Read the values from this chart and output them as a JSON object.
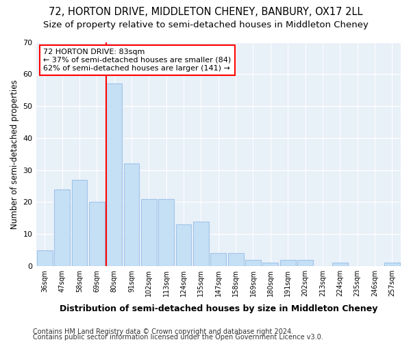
{
  "title1": "72, HORTON DRIVE, MIDDLETON CHENEY, BANBURY, OX17 2LL",
  "title2": "Size of property relative to semi-detached houses in Middleton Cheney",
  "xlabel": "Distribution of semi-detached houses by size in Middleton Cheney",
  "ylabel": "Number of semi-detached properties",
  "categories": [
    "36sqm",
    "47sqm",
    "58sqm",
    "69sqm",
    "80sqm",
    "91sqm",
    "102sqm",
    "113sqm",
    "124sqm",
    "135sqm",
    "147sqm",
    "158sqm",
    "169sqm",
    "180sqm",
    "191sqm",
    "202sqm",
    "213sqm",
    "224sqm",
    "235sqm",
    "246sqm",
    "257sqm"
  ],
  "values": [
    5,
    24,
    27,
    20,
    57,
    32,
    21,
    21,
    13,
    14,
    4,
    4,
    2,
    1,
    2,
    2,
    0,
    1,
    0,
    0,
    1
  ],
  "bar_color": "#c5dff5",
  "bar_edge_color": "#a0c4e8",
  "ref_line_color": "#ff0000",
  "annotation_title": "72 HORTON DRIVE: 83sqm",
  "annotation_line1": "← 37% of semi-detached houses are smaller (84)",
  "annotation_line2": "62% of semi-detached houses are larger (141) →",
  "annotation_box_color": "#ffffff",
  "annotation_box_edge": "#ff0000",
  "ylim": [
    0,
    70
  ],
  "yticks": [
    0,
    10,
    20,
    30,
    40,
    50,
    60,
    70
  ],
  "footer1": "Contains HM Land Registry data © Crown copyright and database right 2024.",
  "footer2": "Contains public sector information licensed under the Open Government Licence v3.0.",
  "bg_color": "#ffffff",
  "plot_bg_color": "#e8f0f8",
  "grid_color": "#ffffff",
  "title1_fontsize": 10.5,
  "title2_fontsize": 9.5,
  "footer_fontsize": 7
}
